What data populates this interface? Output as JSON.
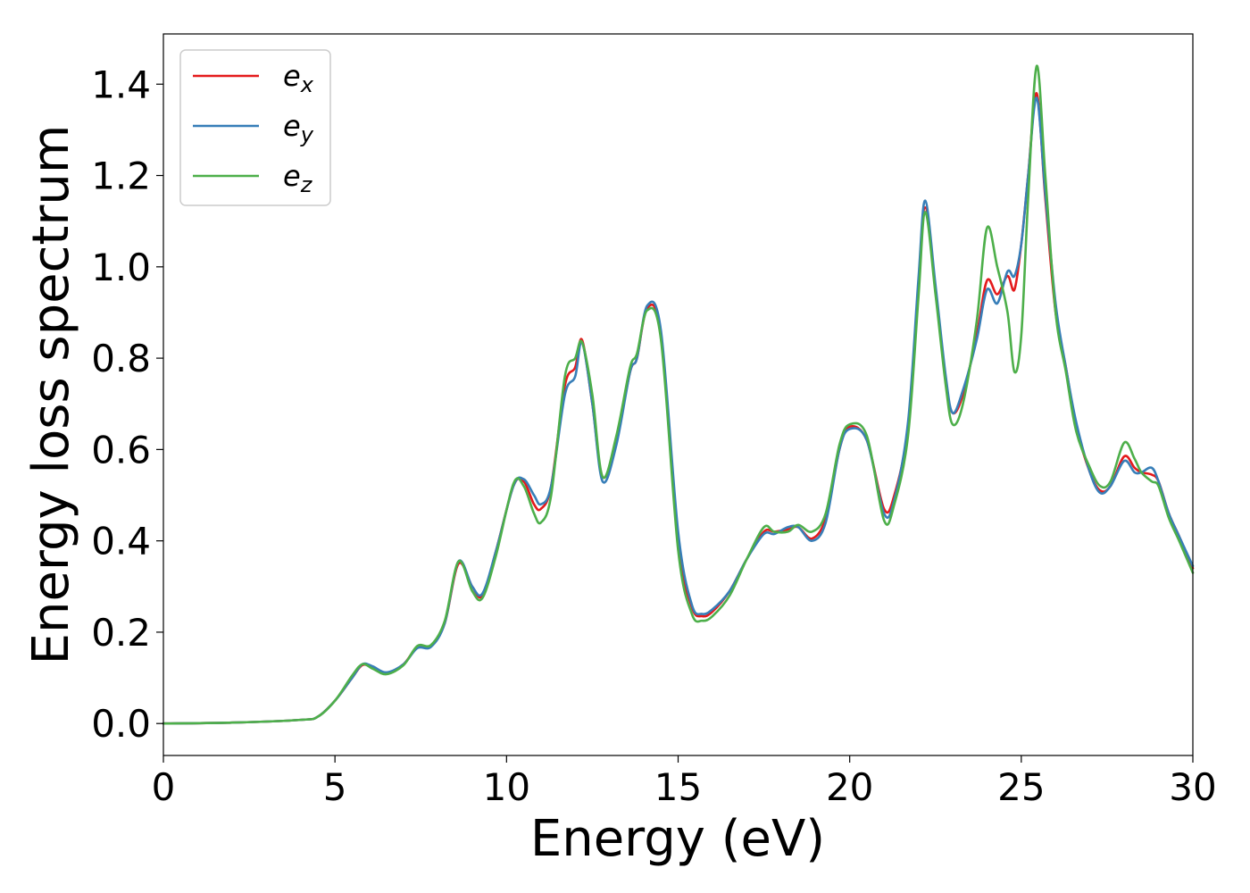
{
  "chart_data": {
    "type": "line",
    "xlabel": "Energy (eV)",
    "ylabel": "Energy loss spectrum",
    "xlim": [
      0,
      30
    ],
    "ylim": [
      -0.07,
      1.51
    ],
    "xticks": [
      0,
      5,
      10,
      15,
      20,
      25,
      30
    ],
    "xtick_labels": [
      "0",
      "5",
      "10",
      "15",
      "20",
      "25",
      "30"
    ],
    "yticks": [
      0.0,
      0.2,
      0.4,
      0.6,
      0.8,
      1.0,
      1.2,
      1.4
    ],
    "ytick_labels": [
      "0.0",
      "0.2",
      "0.4",
      "0.6",
      "0.8",
      "1.0",
      "1.2",
      "1.4"
    ],
    "grid": false,
    "legend_position": "top-left",
    "series": [
      {
        "name": "e_x",
        "label_base": "e",
        "label_sub": "x",
        "color": "#e41a1c",
        "x": [
          0,
          2,
          4,
          4.5,
          5,
          5.5,
          5.8,
          6.1,
          6.5,
          7,
          7.4,
          7.8,
          8.2,
          8.6,
          9,
          9.3,
          9.7,
          10.2,
          10.5,
          10.8,
          11,
          11.3,
          11.7,
          12,
          12.2,
          12.5,
          12.8,
          13.2,
          13.6,
          13.8,
          14.1,
          14.5,
          15,
          15.4,
          15.7,
          16,
          16.5,
          17,
          17.5,
          17.8,
          18.2,
          18.5,
          18.9,
          19.3,
          19.7,
          20,
          20.5,
          21,
          21.3,
          21.7,
          22,
          22.2,
          22.5,
          22.8,
          23,
          23.3,
          23.7,
          24,
          24.3,
          24.6,
          24.8,
          25,
          25.2,
          25.45,
          25.7,
          26,
          26.3,
          26.6,
          27,
          27.3,
          27.6,
          28,
          28.3,
          28.5,
          28.8,
          29,
          29.3,
          29.6,
          30
        ],
        "y": [
          0,
          0.002,
          0.008,
          0.015,
          0.05,
          0.1,
          0.128,
          0.122,
          0.11,
          0.13,
          0.168,
          0.17,
          0.22,
          0.35,
          0.3,
          0.28,
          0.38,
          0.52,
          0.53,
          0.48,
          0.47,
          0.52,
          0.74,
          0.78,
          0.84,
          0.7,
          0.54,
          0.62,
          0.77,
          0.8,
          0.91,
          0.85,
          0.4,
          0.255,
          0.235,
          0.245,
          0.29,
          0.36,
          0.42,
          0.42,
          0.425,
          0.43,
          0.405,
          0.45,
          0.6,
          0.65,
          0.62,
          0.47,
          0.5,
          0.65,
          0.95,
          1.13,
          0.95,
          0.75,
          0.68,
          0.72,
          0.85,
          0.97,
          0.94,
          0.98,
          0.95,
          1.05,
          1.2,
          1.38,
          1.15,
          0.9,
          0.78,
          0.65,
          0.55,
          0.51,
          0.52,
          0.585,
          0.56,
          0.55,
          0.545,
          0.53,
          0.46,
          0.41,
          0.34
        ]
      },
      {
        "name": "e_y",
        "label_base": "e",
        "label_sub": "y",
        "color": "#377eb8",
        "x": [
          0,
          2,
          4,
          4.5,
          5,
          5.5,
          5.8,
          6.1,
          6.5,
          7,
          7.4,
          7.8,
          8.2,
          8.6,
          9,
          9.3,
          9.7,
          10.2,
          10.5,
          10.8,
          11,
          11.3,
          11.7,
          12,
          12.2,
          12.5,
          12.8,
          13.2,
          13.6,
          13.8,
          14.1,
          14.5,
          15,
          15.4,
          15.7,
          16,
          16.5,
          17,
          17.5,
          17.8,
          18.2,
          18.5,
          18.9,
          19.3,
          19.7,
          20,
          20.5,
          21,
          21.3,
          21.7,
          22,
          22.2,
          22.5,
          22.8,
          23,
          23.3,
          23.7,
          24,
          24.3,
          24.6,
          24.8,
          25,
          25.2,
          25.45,
          25.7,
          26,
          26.3,
          26.6,
          27,
          27.3,
          27.6,
          28,
          28.3,
          28.5,
          28.8,
          29,
          29.3,
          29.6,
          30
        ],
        "y": [
          0,
          0.002,
          0.008,
          0.015,
          0.05,
          0.1,
          0.13,
          0.125,
          0.112,
          0.13,
          0.165,
          0.168,
          0.22,
          0.355,
          0.3,
          0.285,
          0.38,
          0.52,
          0.535,
          0.5,
          0.48,
          0.52,
          0.72,
          0.76,
          0.835,
          0.7,
          0.53,
          0.61,
          0.77,
          0.8,
          0.915,
          0.86,
          0.42,
          0.26,
          0.24,
          0.25,
          0.29,
          0.36,
          0.415,
          0.415,
          0.43,
          0.43,
          0.4,
          0.44,
          0.6,
          0.645,
          0.62,
          0.46,
          0.49,
          0.66,
          0.97,
          1.145,
          0.96,
          0.76,
          0.68,
          0.73,
          0.84,
          0.95,
          0.92,
          0.99,
          0.98,
          1.05,
          1.2,
          1.37,
          1.16,
          0.92,
          0.78,
          0.66,
          0.55,
          0.505,
          0.52,
          0.575,
          0.55,
          0.55,
          0.56,
          0.53,
          0.46,
          0.41,
          0.345
        ]
      },
      {
        "name": "e_z",
        "label_base": "e",
        "label_sub": "z",
        "color": "#4daf4a",
        "x": [
          0,
          2,
          4,
          4.5,
          5,
          5.5,
          5.8,
          6.1,
          6.5,
          7,
          7.4,
          7.8,
          8.2,
          8.6,
          9,
          9.3,
          9.7,
          10.2,
          10.5,
          10.8,
          11,
          11.3,
          11.7,
          12,
          12.2,
          12.5,
          12.8,
          13.2,
          13.6,
          13.8,
          14.1,
          14.5,
          15,
          15.4,
          15.7,
          16,
          16.5,
          17,
          17.5,
          17.8,
          18.2,
          18.5,
          18.9,
          19.3,
          19.7,
          20,
          20.5,
          21,
          21.3,
          21.7,
          22,
          22.2,
          22.5,
          22.8,
          23,
          23.3,
          23.7,
          24,
          24.3,
          24.6,
          24.8,
          25,
          25.2,
          25.45,
          25.7,
          26,
          26.3,
          26.6,
          27,
          27.3,
          27.6,
          28,
          28.3,
          28.5,
          28.8,
          29,
          29.3,
          29.6,
          30
        ],
        "y": [
          0,
          0.002,
          0.008,
          0.015,
          0.05,
          0.105,
          0.13,
          0.12,
          0.108,
          0.128,
          0.17,
          0.172,
          0.225,
          0.355,
          0.29,
          0.275,
          0.37,
          0.525,
          0.52,
          0.46,
          0.44,
          0.5,
          0.76,
          0.8,
          0.835,
          0.72,
          0.54,
          0.63,
          0.78,
          0.81,
          0.905,
          0.84,
          0.38,
          0.24,
          0.225,
          0.235,
          0.28,
          0.36,
          0.43,
          0.42,
          0.42,
          0.435,
          0.42,
          0.46,
          0.61,
          0.655,
          0.63,
          0.445,
          0.48,
          0.63,
          0.93,
          1.12,
          0.94,
          0.74,
          0.655,
          0.7,
          0.88,
          1.085,
          1.0,
          0.9,
          0.77,
          0.85,
          1.15,
          1.44,
          1.2,
          0.9,
          0.77,
          0.64,
          0.56,
          0.52,
          0.53,
          0.615,
          0.58,
          0.55,
          0.53,
          0.52,
          0.45,
          0.4,
          0.33
        ]
      }
    ]
  }
}
